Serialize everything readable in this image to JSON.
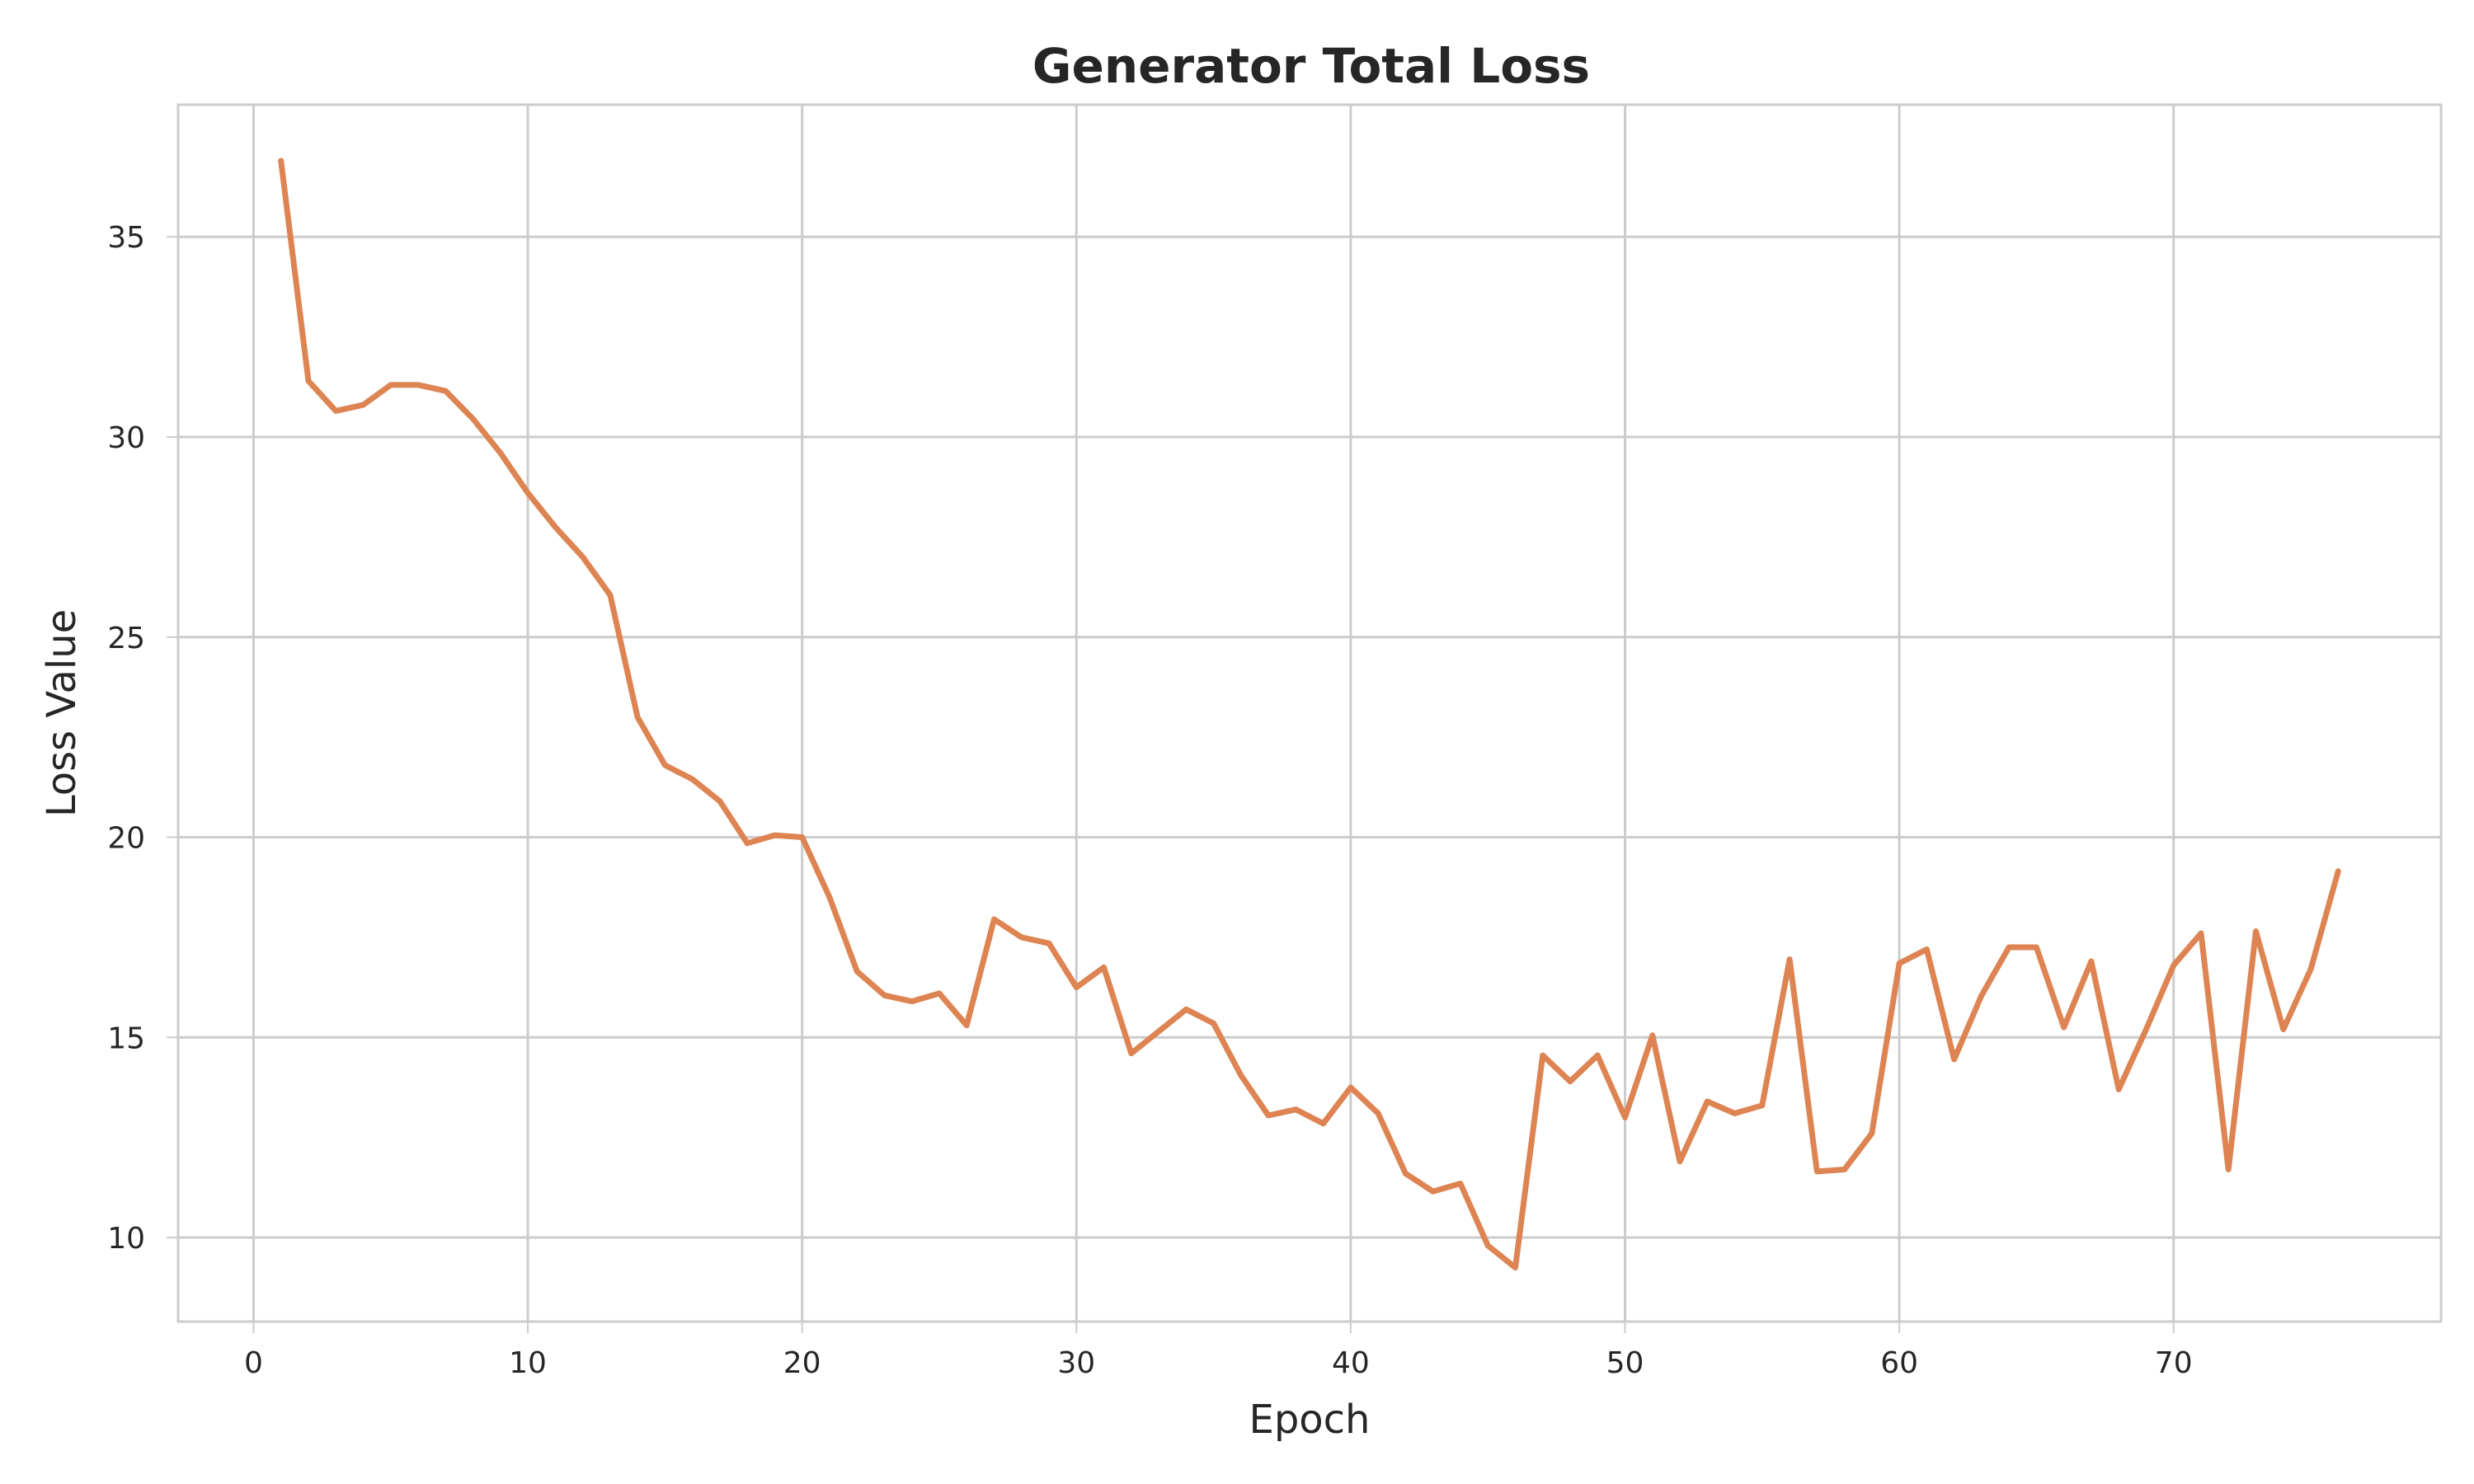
{
  "chart_data": {
    "type": "line",
    "title": "Generator Total Loss",
    "xlabel": "Epoch",
    "ylabel": "Loss Value",
    "xlim": [
      -2.75,
      79.75
    ],
    "ylim": [
      7.9,
      38.3
    ],
    "xticks": [
      0,
      10,
      20,
      30,
      40,
      50,
      60,
      70
    ],
    "yticks": [
      10,
      15,
      20,
      25,
      30,
      35
    ],
    "grid": true,
    "legend": "none",
    "series": [
      {
        "color": "#dd8452",
        "x": [
          1,
          2,
          3,
          4,
          5,
          6,
          7,
          8,
          9,
          10,
          11,
          12,
          13,
          14,
          15,
          16,
          17,
          18,
          19,
          20,
          21,
          22,
          23,
          24,
          25,
          26,
          27,
          28,
          29,
          30,
          31,
          32,
          33,
          34,
          35,
          36,
          37,
          38,
          39,
          40,
          41,
          42,
          43,
          44,
          45,
          46,
          47,
          48,
          49,
          50,
          51,
          52,
          53,
          54,
          55,
          56,
          57,
          58,
          59,
          60,
          61,
          62,
          63,
          64,
          65,
          66,
          67,
          68,
          69,
          70,
          71,
          72,
          73,
          74,
          75,
          76
        ],
        "y": [
          36.9,
          31.4,
          30.65,
          30.8,
          31.3,
          31.3,
          31.15,
          30.45,
          29.6,
          28.6,
          27.75,
          27.0,
          26.05,
          23.0,
          21.8,
          21.45,
          20.9,
          19.85,
          20.05,
          20.0,
          18.5,
          16.65,
          16.05,
          15.9,
          16.1,
          15.3,
          17.95,
          17.5,
          17.35,
          16.25,
          16.75,
          14.6,
          15.15,
          15.7,
          15.35,
          14.05,
          13.05,
          13.2,
          12.85,
          13.75,
          13.1,
          11.6,
          11.15,
          11.35,
          9.8,
          9.25,
          14.55,
          13.9,
          14.55,
          13.0,
          15.05,
          11.9,
          13.4,
          13.1,
          13.3,
          16.95,
          11.65,
          11.7,
          12.6,
          16.85,
          17.2,
          14.45,
          16.05,
          17.25,
          17.25,
          15.25,
          16.9,
          13.7,
          15.2,
          16.8,
          17.6,
          11.7,
          17.65,
          15.2,
          16.7,
          19.15
        ]
      }
    ]
  }
}
